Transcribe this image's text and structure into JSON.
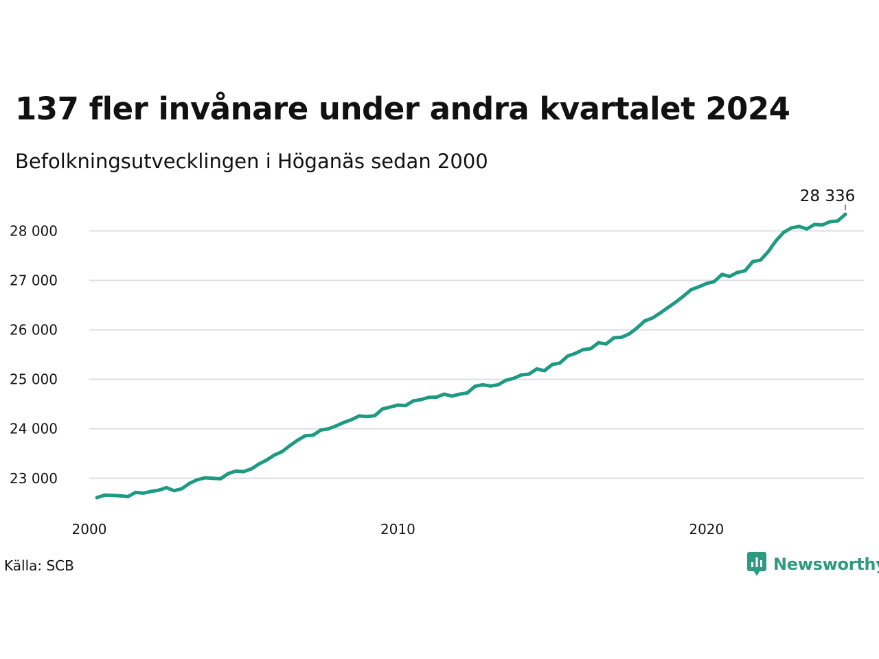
{
  "title": "137 fler invånare under andra kvartalet 2024",
  "subtitle": "Befolkningsutvecklingen i Höganäs sedan 2000",
  "source": "Källa: SCB",
  "brand": {
    "name": "Newsworthy",
    "icon": "newsworthy-logo-icon",
    "color": "#2e9a82"
  },
  "colors": {
    "line": "#1d9a81",
    "grid": "#dcdde3",
    "text": "#111111"
  },
  "chart_data": {
    "type": "line",
    "title": "137 fler invånare under andra kvartalet 2024",
    "subtitle": "Befolkningsutvecklingen i Höganäs sedan 2000",
    "xlabel": "",
    "ylabel": "",
    "xlim": [
      2000,
      2025.1
    ],
    "ylim": [
      22400,
      28560
    ],
    "y_ticks": [
      23000,
      24000,
      25000,
      26000,
      27000,
      28000
    ],
    "y_tick_labels": [
      "23 000",
      "24 000",
      "25 000",
      "26 000",
      "27 000",
      "28 000"
    ],
    "x_ticks": [
      2000,
      2010,
      2020
    ],
    "x_tick_labels": [
      "2000",
      "2010",
      "2020"
    ],
    "grid": "horizontal",
    "end_label": "28 336",
    "series": [
      {
        "x": [
          2000.25,
          2000.5,
          2000.75,
          2001.0,
          2001.25,
          2001.5,
          2001.75,
          2002.0,
          2002.25,
          2002.5,
          2002.75,
          2003.0,
          2003.25,
          2003.5,
          2003.75,
          2004.0,
          2004.25,
          2004.5,
          2004.75,
          2005.0,
          2005.25,
          2005.5,
          2005.75,
          2006.0,
          2006.25,
          2006.5,
          2006.75,
          2007.0,
          2007.25,
          2007.5,
          2007.75,
          2008.0,
          2008.25,
          2008.5,
          2008.75,
          2009.0,
          2009.25,
          2009.5,
          2009.75,
          2010.0,
          2010.25,
          2010.5,
          2010.75,
          2011.0,
          2011.25,
          2011.5,
          2011.75,
          2012.0,
          2012.25,
          2012.5,
          2012.75,
          2013.0,
          2013.25,
          2013.5,
          2013.75,
          2014.0,
          2014.25,
          2014.5,
          2014.75,
          2015.0,
          2015.25,
          2015.5,
          2015.75,
          2016.0,
          2016.25,
          2016.5,
          2016.75,
          2017.0,
          2017.25,
          2017.5,
          2017.75,
          2018.0,
          2018.25,
          2018.5,
          2018.75,
          2019.0,
          2019.25,
          2019.5,
          2019.75,
          2020.0,
          2020.25,
          2020.5,
          2020.75,
          2021.0,
          2021.25,
          2021.5,
          2021.75,
          2022.0,
          2022.25,
          2022.5,
          2022.75,
          2023.0,
          2023.25,
          2023.5,
          2023.75,
          2024.0,
          2024.25,
          2024.5
        ],
        "values": [
          22610,
          22660,
          22655,
          22645,
          22630,
          22715,
          22700,
          22735,
          22760,
          22810,
          22750,
          22790,
          22900,
          22970,
          23010,
          23000,
          22990,
          23095,
          23145,
          23135,
          23190,
          23290,
          23370,
          23470,
          23540,
          23660,
          23770,
          23860,
          23870,
          23975,
          24000,
          24060,
          24130,
          24185,
          24260,
          24250,
          24265,
          24400,
          24440,
          24480,
          24470,
          24565,
          24590,
          24635,
          24640,
          24700,
          24660,
          24700,
          24725,
          24860,
          24890,
          24865,
          24890,
          24980,
          25020,
          25090,
          25105,
          25210,
          25175,
          25300,
          25330,
          25470,
          25525,
          25600,
          25620,
          25740,
          25715,
          25840,
          25850,
          25920,
          26040,
          26180,
          26240,
          26340,
          26450,
          26560,
          26680,
          26810,
          26870,
          26935,
          26975,
          27120,
          27080,
          27160,
          27195,
          27380,
          27410,
          27580,
          27800,
          27970,
          28060,
          28090,
          28040,
          28130,
          28120,
          28185,
          28200,
          28336
        ]
      }
    ]
  }
}
